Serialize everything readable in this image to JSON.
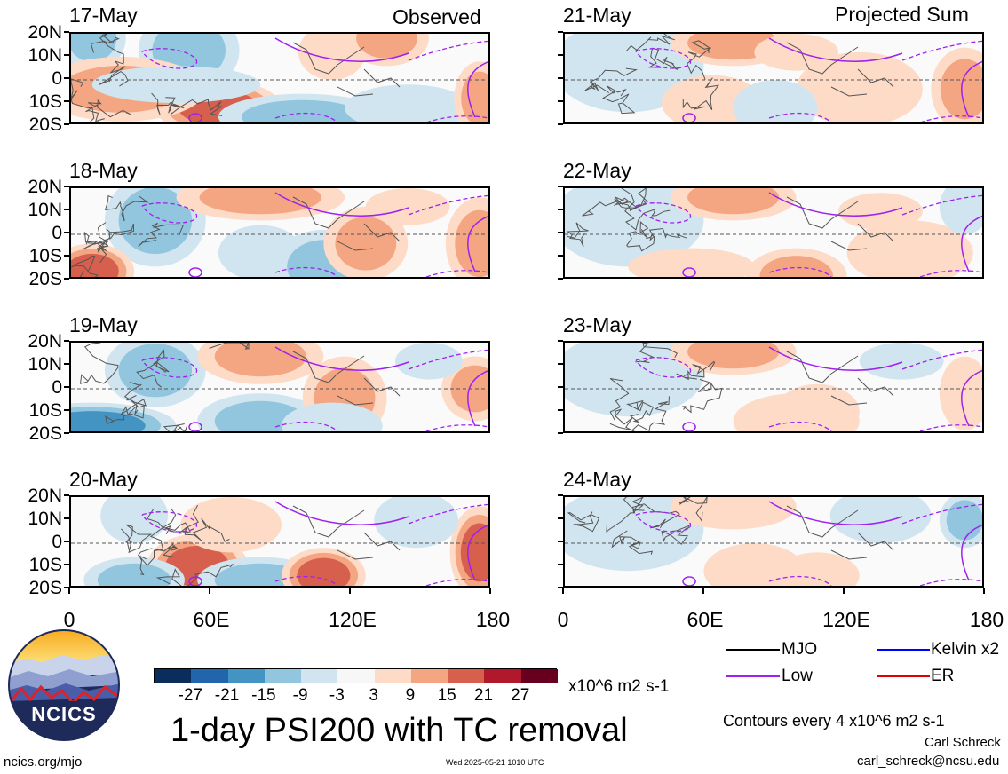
{
  "chart_data": {
    "type": "heatmap",
    "title": "1-day PSI200 with TC removal",
    "units": "x10^6 m2 s-1",
    "column_headers": [
      "Observed",
      "Projected Sum"
    ],
    "observed_dates": [
      "17-May",
      "18-May",
      "19-May",
      "20-May"
    ],
    "projected_dates": [
      "21-May",
      "22-May",
      "23-May",
      "24-May"
    ],
    "y_tick_labels": [
      "20N",
      "10N",
      "0",
      "10S",
      "20S"
    ],
    "x_tick_labels": [
      "0",
      "60E",
      "120E",
      "180"
    ],
    "xlim": [
      0,
      180
    ],
    "ylim": [
      -20,
      20
    ],
    "colorbar_labels": [
      "-27",
      "-21",
      "-15",
      "-9",
      "-3",
      "3",
      "9",
      "15",
      "21",
      "27"
    ],
    "colorbar_colors": [
      "#0a2d5c",
      "#2166ac",
      "#4393c3",
      "#92c5de",
      "#d1e5f0",
      "#f7f7f7",
      "#fddbc7",
      "#f4a582",
      "#d6604d",
      "#b2182b",
      "#67001f"
    ],
    "contour_note": "Contours every 4 x10^6 m2 s-1",
    "legend": [
      {
        "label": "MJO",
        "color": "#000000"
      },
      {
        "label": "Kelvin x2",
        "color": "#0000ff"
      },
      {
        "label": "Low",
        "color": "#a020f0"
      },
      {
        "label": "ER",
        "color": "#e00000"
      }
    ]
  },
  "footer": {
    "url": "ncics.org/mjo",
    "timestamp": "Wed 2025-05-21 1010 UTC",
    "author": "Carl Schreck",
    "email": "carl_schreck@ncsu.edu"
  },
  "logo": {
    "text": "NCICS"
  }
}
